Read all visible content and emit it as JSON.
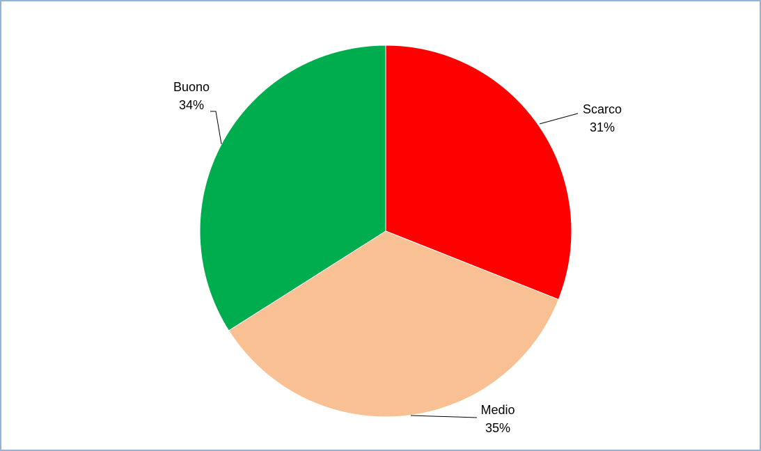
{
  "chart_data": {
    "type": "pie",
    "categories": [
      "Scarco",
      "Medio",
      "Buono"
    ],
    "values": [
      31,
      35,
      34
    ],
    "value_labels": [
      "31%",
      "35%",
      "34%"
    ],
    "colors": [
      "#ff0000",
      "#f9c193",
      "#00ad4e"
    ]
  }
}
